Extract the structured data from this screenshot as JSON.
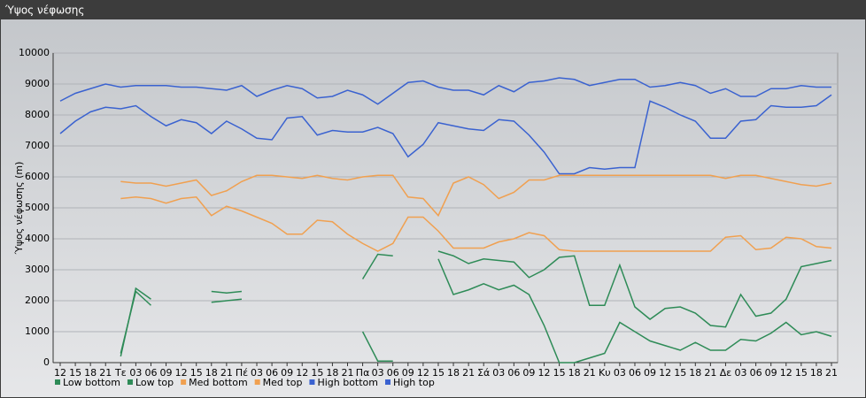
{
  "chart_data": {
    "type": "line",
    "title": "Ύψος νέφωσης",
    "y_label": "Ύψος νέφωσης (m)",
    "categories": [
      "12",
      "15",
      "18",
      "21",
      "Τε",
      "03",
      "06",
      "09",
      "12",
      "15",
      "18",
      "21",
      "Πέ",
      "03",
      "06",
      "09",
      "12",
      "15",
      "18",
      "21",
      "Πα",
      "03",
      "06",
      "09",
      "12",
      "15",
      "18",
      "21",
      "Σά",
      "03",
      "06",
      "09",
      "12",
      "15",
      "18",
      "21",
      "Κυ",
      "03",
      "06",
      "09",
      "12",
      "15",
      "18",
      "21",
      "Δε",
      "03",
      "06",
      "09",
      "12",
      "15",
      "18",
      "21"
    ],
    "ylim": [
      0,
      10000
    ],
    "yticks": [
      0,
      1000,
      2000,
      3000,
      4000,
      5000,
      6000,
      7000,
      8000,
      9000,
      10000
    ],
    "grid": true,
    "series": [
      {
        "name": "Low bottom",
        "color": "#2e8b57",
        "values": [
          null,
          null,
          null,
          null,
          300,
          2300,
          1850,
          null,
          null,
          null,
          1950,
          2000,
          2050,
          null,
          null,
          null,
          null,
          null,
          null,
          null,
          1000,
          50,
          50,
          null,
          null,
          3350,
          2200,
          2350,
          2550,
          2350,
          2500,
          2200,
          1200,
          0,
          0,
          150,
          300,
          1300,
          1000,
          700,
          550,
          400,
          650,
          400,
          400,
          750,
          700,
          950,
          1300,
          900,
          1000,
          850
        ]
      },
      {
        "name": "Low top",
        "color": "#2e8b57",
        "values": [
          null,
          null,
          null,
          null,
          200,
          2400,
          2050,
          null,
          null,
          null,
          2300,
          2250,
          2300,
          null,
          null,
          null,
          null,
          null,
          null,
          null,
          2700,
          3500,
          3450,
          null,
          null,
          3600,
          3450,
          3200,
          3350,
          3300,
          3250,
          2750,
          3000,
          3400,
          3450,
          1850,
          1850,
          3150,
          1800,
          1400,
          1750,
          1800,
          1600,
          1200,
          1150,
          2200,
          1500,
          1600,
          2050,
          3100,
          3200,
          3300
        ]
      },
      {
        "name": "Med bottom",
        "color": "#f0a050",
        "values": [
          null,
          null,
          null,
          null,
          5300,
          5350,
          5300,
          5150,
          5300,
          5350,
          4750,
          5050,
          4900,
          4700,
          4500,
          4150,
          4150,
          4600,
          4550,
          4150,
          3850,
          3600,
          3850,
          4700,
          4700,
          4250,
          3700,
          3700,
          3700,
          3900,
          4000,
          4200,
          4100,
          3650,
          3600,
          3600,
          3600,
          3600,
          3600,
          3600,
          3600,
          3600,
          3600,
          3600,
          4050,
          4100,
          3650,
          3700,
          4050,
          4000,
          3750,
          3700
        ]
      },
      {
        "name": "Med top",
        "color": "#f0a050",
        "values": [
          null,
          null,
          null,
          null,
          5850,
          5800,
          5800,
          5700,
          5800,
          5900,
          5400,
          5550,
          5850,
          6050,
          6050,
          6000,
          5950,
          6050,
          5950,
          5900,
          6000,
          6050,
          6050,
          5350,
          5300,
          4750,
          5800,
          6000,
          5750,
          5300,
          5500,
          5900,
          5900,
          6050,
          6050,
          6050,
          6050,
          6050,
          6050,
          6050,
          6050,
          6050,
          6050,
          6050,
          5950,
          6050,
          6050,
          5950,
          5850,
          5750,
          5700,
          5800
        ]
      },
      {
        "name": "High bottom",
        "color": "#3a62d0",
        "values": [
          7400,
          7800,
          8100,
          8250,
          8200,
          8300,
          7950,
          7650,
          7850,
          7750,
          7400,
          7800,
          7550,
          7250,
          7200,
          7900,
          7950,
          7350,
          7500,
          7450,
          7450,
          7600,
          7400,
          6650,
          7050,
          7750,
          7650,
          7550,
          7500,
          7850,
          7800,
          7350,
          6800,
          6100,
          6100,
          6300,
          6250,
          6300,
          6300,
          8450,
          8250,
          8000,
          7800,
          7250,
          7250,
          7800,
          7850,
          8300,
          8250,
          8250,
          8300,
          8650
        ]
      },
      {
        "name": "High top",
        "color": "#3a62d0",
        "values": [
          8450,
          8700,
          8850,
          9000,
          8900,
          8950,
          8950,
          8950,
          8900,
          8900,
          8850,
          8800,
          8950,
          8600,
          8800,
          8950,
          8850,
          8550,
          8600,
          8800,
          8650,
          8350,
          8700,
          9050,
          9100,
          8900,
          8800,
          8800,
          8650,
          8950,
          8750,
          9050,
          9100,
          9200,
          9150,
          8950,
          9050,
          9150,
          9150,
          8900,
          8950,
          9050,
          8950,
          8700,
          8850,
          8600,
          8600,
          8850,
          8850,
          8950,
          8900,
          8900
        ]
      }
    ]
  }
}
